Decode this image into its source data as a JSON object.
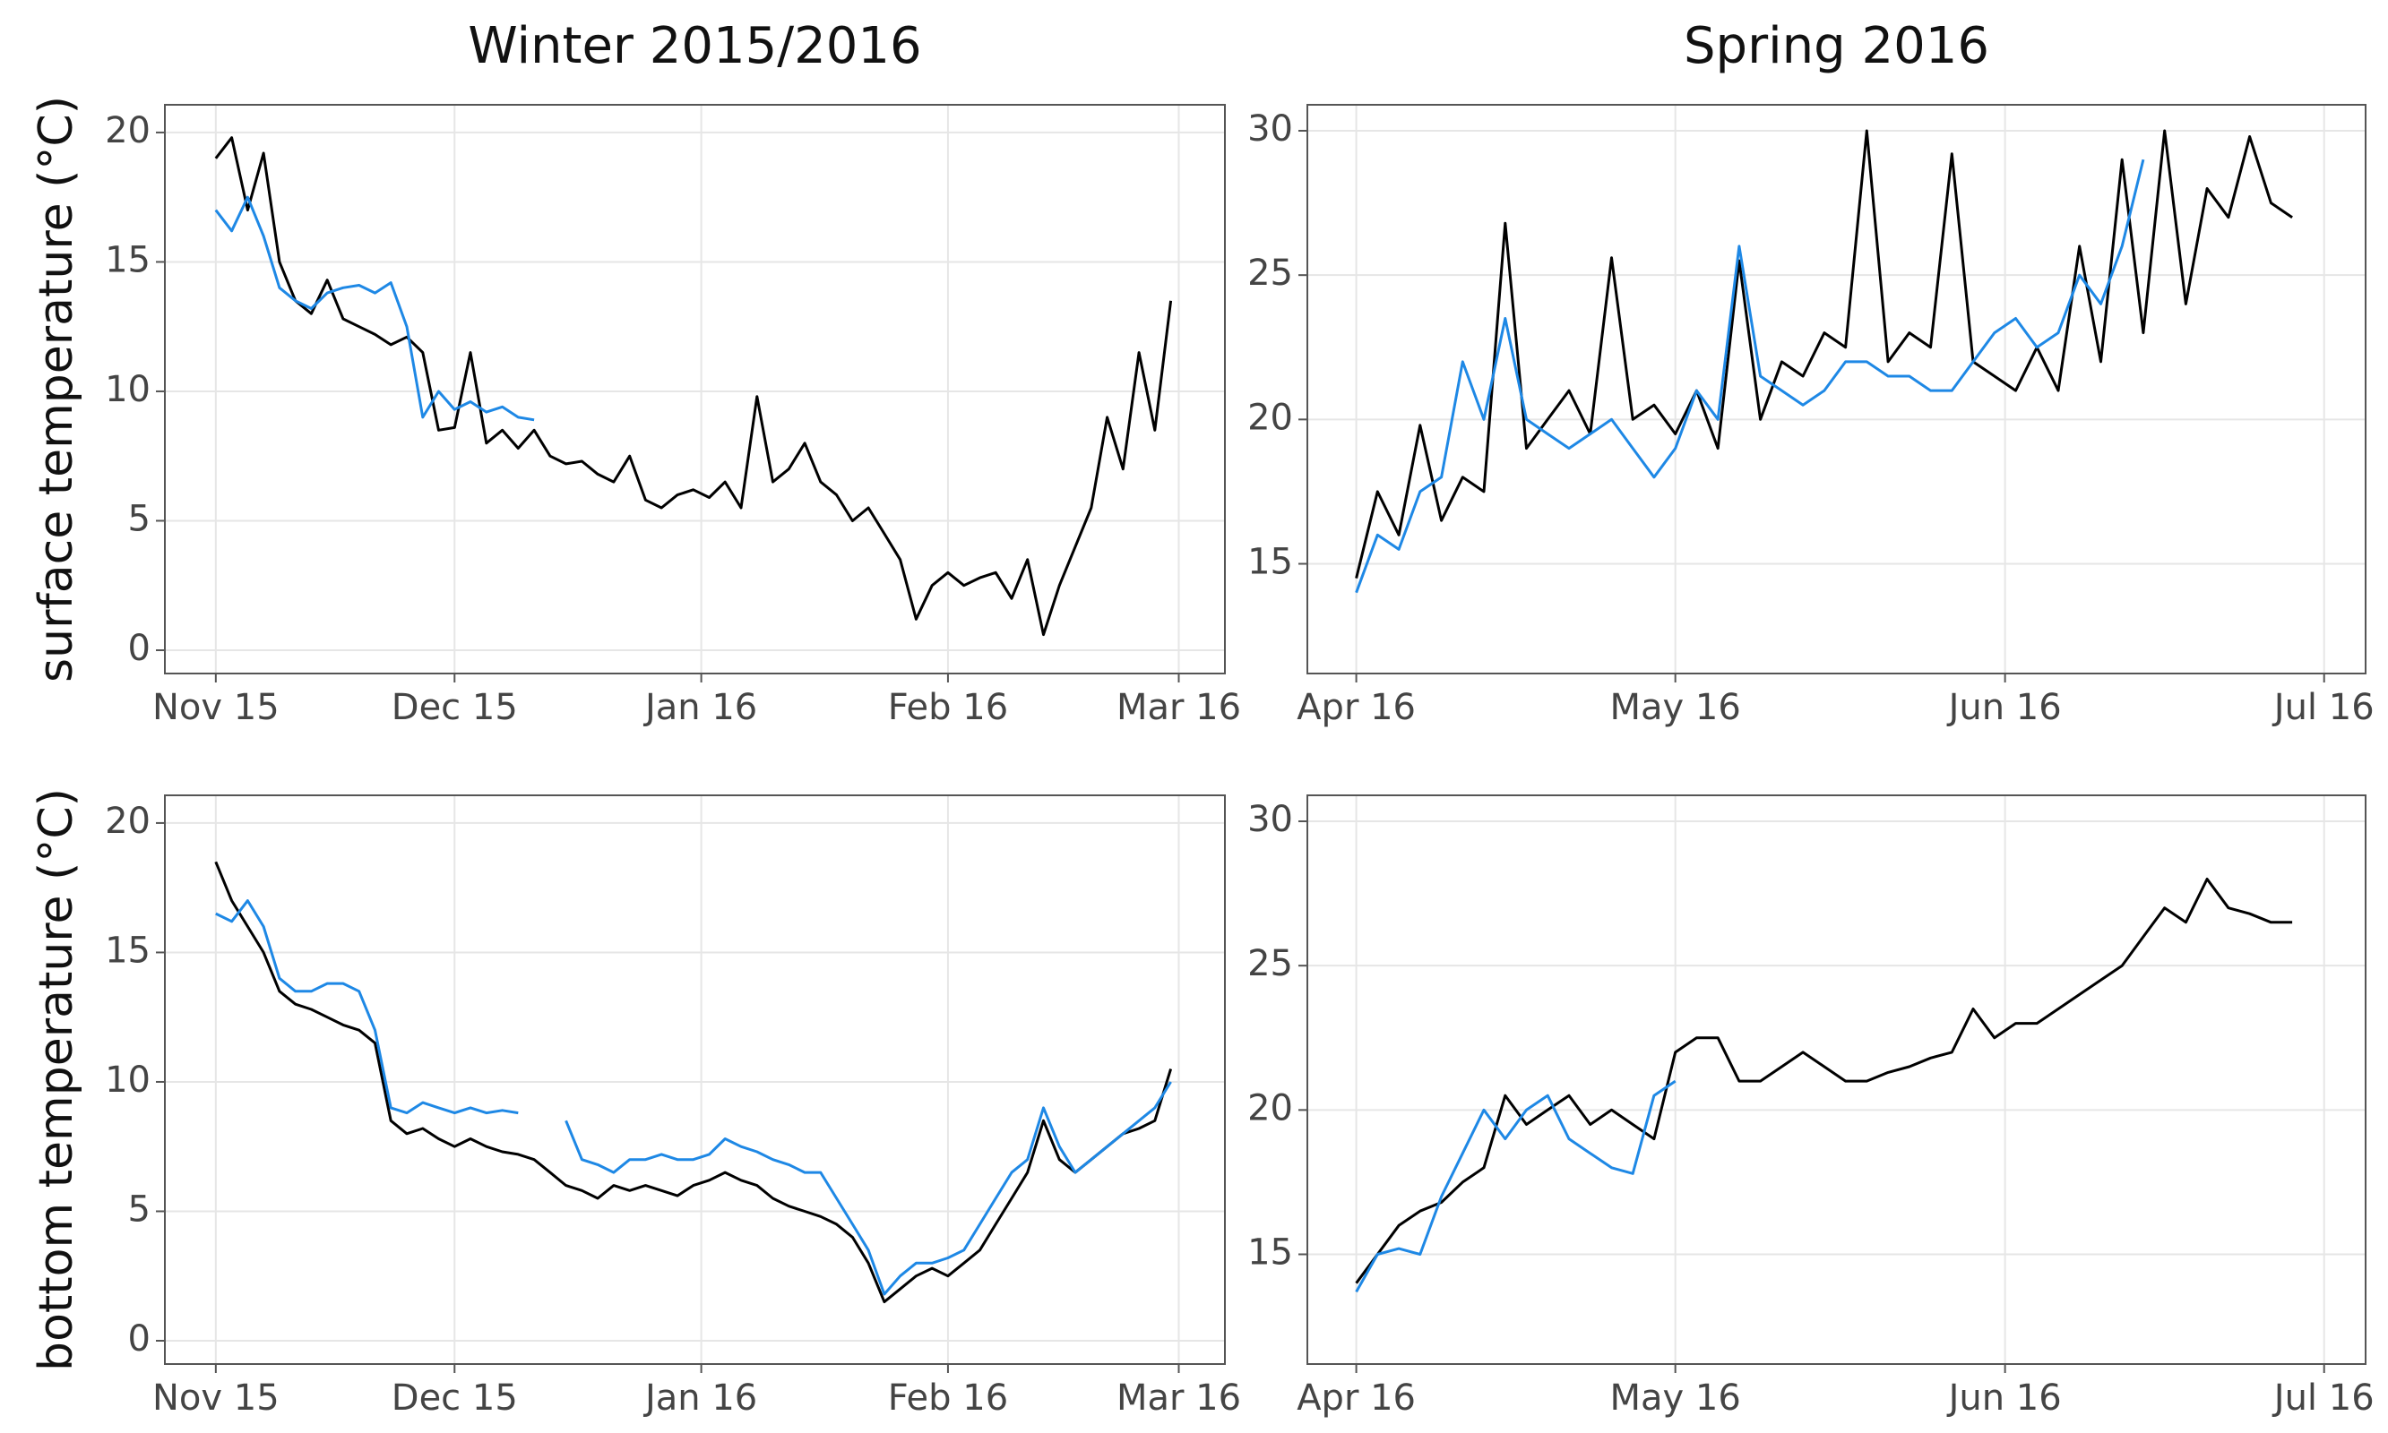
{
  "chart_data": [
    {
      "type": "line",
      "title": "Winter 2015/2016",
      "ylabel": "surface temperature (°C)",
      "x": [
        0,
        2,
        4,
        6,
        8,
        10,
        12,
        14,
        16,
        18,
        20,
        22,
        24,
        26,
        28,
        30,
        32,
        34,
        36,
        38,
        40,
        42,
        44,
        46,
        48,
        50,
        52,
        54,
        56,
        58,
        60,
        62,
        64,
        66,
        68,
        70,
        72,
        74,
        76,
        78,
        80,
        82,
        84,
        86,
        88,
        90,
        92,
        94,
        96,
        98,
        100,
        102,
        104,
        106,
        108,
        110,
        112,
        114,
        116,
        118,
        120
      ],
      "series": [
        {
          "color": "#000000",
          "values": [
            19,
            19.8,
            17,
            19.2,
            15,
            13.5,
            13,
            14.3,
            12.8,
            12.5,
            12.2,
            11.8,
            12.1,
            11.5,
            8.5,
            8.6,
            11.5,
            8,
            8.5,
            7.8,
            8.5,
            7.5,
            7.2,
            7.3,
            6.8,
            6.5,
            7.5,
            5.8,
            5.5,
            6,
            6.2,
            5.9,
            6.5,
            5.5,
            9.8,
            6.5,
            7,
            8,
            6.5,
            6,
            5,
            5.5,
            4.5,
            3.5,
            1.2,
            2.5,
            3,
            2.5,
            2.8,
            3,
            2,
            3.5,
            0.6,
            2.5,
            4,
            5.5,
            9,
            7,
            11.5,
            8.5,
            13.5
          ]
        },
        {
          "color": "#1e88e5",
          "values": [
            17,
            16.2,
            17.5,
            16,
            14,
            13.5,
            13.2,
            13.8,
            14,
            14.1,
            13.8,
            14.2,
            12.5,
            9,
            10,
            9.3,
            9.6,
            9.2,
            9.4,
            9,
            8.9,
            null,
            null,
            null,
            null,
            null,
            null,
            null,
            null,
            null,
            null,
            null,
            null,
            null,
            null,
            null,
            null,
            null,
            null,
            null,
            null,
            null,
            null,
            null,
            null,
            null,
            null,
            null,
            null,
            null,
            null,
            null,
            null,
            null,
            null,
            null,
            null,
            null,
            null,
            null,
            null
          ]
        }
      ],
      "xlim": [
        -6.4,
        126.8
      ],
      "xticks": [
        {
          "value": 0,
          "label": "Nov 15"
        },
        {
          "value": 30,
          "label": "Dec 15"
        },
        {
          "value": 61,
          "label": "Jan 16"
        },
        {
          "value": 92,
          "label": "Feb 16"
        },
        {
          "value": 121,
          "label": "Mar 16"
        }
      ],
      "ylim": [
        -0.9,
        21.07
      ],
      "yticks": [
        0,
        5,
        10,
        15,
        20
      ],
      "grid": true
    },
    {
      "type": "line",
      "title": "Spring 2016",
      "x": [
        0,
        2,
        4,
        6,
        8,
        10,
        12,
        14,
        16,
        18,
        20,
        22,
        24,
        26,
        28,
        30,
        32,
        34,
        36,
        38,
        40,
        42,
        44,
        46,
        48,
        50,
        52,
        54,
        56,
        58,
        60,
        62,
        64,
        66,
        68,
        70,
        72,
        74,
        76,
        78,
        80,
        82,
        84,
        86,
        88
      ],
      "series": [
        {
          "color": "#000000",
          "values": [
            14.5,
            17.5,
            16,
            19.8,
            16.5,
            18,
            17.5,
            26.8,
            19,
            20,
            21,
            19.5,
            25.6,
            20,
            20.5,
            19.5,
            21,
            19,
            25.5,
            20,
            22,
            21.5,
            23,
            22.5,
            30,
            22,
            23,
            22.5,
            29.2,
            22,
            21.5,
            21,
            22.5,
            21,
            26,
            22,
            29,
            23,
            30,
            24,
            28,
            27,
            29.8,
            27.5,
            27
          ]
        },
        {
          "color": "#1e88e5",
          "values": [
            14,
            16,
            15.5,
            17.5,
            18,
            22,
            20,
            23.5,
            20,
            19.5,
            19,
            19.5,
            20,
            19,
            18,
            19,
            21,
            20,
            26,
            21.5,
            21,
            20.5,
            21,
            22,
            22,
            21.5,
            21.5,
            21,
            21,
            22,
            23,
            23.5,
            22.5,
            23,
            25,
            24,
            26,
            29,
            null,
            null,
            null,
            null,
            null,
            null,
            null
          ]
        }
      ],
      "xlim": [
        -4.6,
        94.9
      ],
      "xticks": [
        {
          "value": 0,
          "label": "Apr 16"
        },
        {
          "value": 30,
          "label": "May 16"
        },
        {
          "value": 61,
          "label": "Jun 16"
        },
        {
          "value": 91,
          "label": "Jul 16"
        }
      ],
      "ylim": [
        11.2,
        30.9
      ],
      "yticks": [
        15,
        20,
        25,
        30
      ],
      "grid": true
    },
    {
      "type": "line",
      "ylabel": "bottom temperature (°C)",
      "x": [
        0,
        2,
        4,
        6,
        8,
        10,
        12,
        14,
        16,
        18,
        20,
        22,
        24,
        26,
        28,
        30,
        32,
        34,
        36,
        38,
        40,
        42,
        44,
        46,
        48,
        50,
        52,
        54,
        56,
        58,
        60,
        62,
        64,
        66,
        68,
        70,
        72,
        74,
        76,
        78,
        80,
        82,
        84,
        86,
        88,
        90,
        92,
        94,
        96,
        98,
        100,
        102,
        104,
        106,
        108,
        110,
        112,
        114,
        116,
        118,
        120
      ],
      "series": [
        {
          "color": "#000000",
          "values": [
            18.5,
            17,
            16,
            15,
            13.5,
            13,
            12.8,
            12.5,
            12.2,
            12,
            11.5,
            8.5,
            8,
            8.2,
            7.8,
            7.5,
            7.8,
            7.5,
            7.3,
            7.2,
            7,
            6.5,
            6,
            5.8,
            5.5,
            6,
            5.8,
            6,
            5.8,
            5.6,
            6,
            6.2,
            6.5,
            6.2,
            6,
            5.5,
            5.2,
            5,
            4.8,
            4.5,
            4,
            3,
            1.5,
            2,
            2.5,
            2.8,
            2.5,
            3,
            3.5,
            4.5,
            5.5,
            6.5,
            8.5,
            7,
            6.5,
            7,
            7.5,
            8,
            8.2,
            8.5,
            10.5
          ]
        },
        {
          "color": "#1e88e5",
          "values": [
            16.5,
            16.2,
            17,
            16,
            14,
            13.5,
            13.5,
            13.8,
            13.8,
            13.5,
            12,
            9,
            8.8,
            9.2,
            9,
            8.8,
            9,
            8.8,
            8.9,
            8.8,
            null,
            null,
            8.5,
            7,
            6.8,
            6.5,
            7,
            7,
            7.2,
            7,
            7,
            7.2,
            7.8,
            7.5,
            7.3,
            7,
            6.8,
            6.5,
            6.5,
            5.5,
            4.5,
            3.5,
            1.8,
            2.5,
            3,
            3,
            3.2,
            3.5,
            4.5,
            5.5,
            6.5,
            7,
            9,
            7.5,
            6.5,
            7,
            7.5,
            8,
            8.5,
            9,
            10
          ]
        }
      ],
      "xlim": [
        -6.4,
        126.8
      ],
      "xticks": [
        {
          "value": 0,
          "label": "Nov 15"
        },
        {
          "value": 30,
          "label": "Dec 15"
        },
        {
          "value": 61,
          "label": "Jan 16"
        },
        {
          "value": 92,
          "label": "Feb 16"
        },
        {
          "value": 121,
          "label": "Mar 16"
        }
      ],
      "ylim": [
        -0.9,
        21.07
      ],
      "yticks": [
        0,
        5,
        10,
        15,
        20
      ],
      "grid": true
    },
    {
      "type": "line",
      "x": [
        0,
        2,
        4,
        6,
        8,
        10,
        12,
        14,
        16,
        18,
        20,
        22,
        24,
        26,
        28,
        30,
        32,
        34,
        36,
        38,
        40,
        42,
        44,
        46,
        48,
        50,
        52,
        54,
        56,
        58,
        60,
        62,
        64,
        66,
        68,
        70,
        72,
        74,
        76,
        78,
        80,
        82,
        84,
        86,
        88
      ],
      "series": [
        {
          "color": "#000000",
          "values": [
            14,
            15,
            16,
            16.5,
            16.8,
            17.5,
            18,
            20.5,
            19.5,
            20,
            20.5,
            19.5,
            20,
            19.5,
            19,
            22,
            22.5,
            22.5,
            21,
            21,
            21.5,
            22,
            21.5,
            21,
            21,
            21.3,
            21.5,
            21.8,
            22,
            23.5,
            22.5,
            23,
            23,
            23.5,
            24,
            24.5,
            25,
            26,
            27,
            26.5,
            28,
            27,
            26.8,
            26.5,
            26.5
          ]
        },
        {
          "color": "#1e88e5",
          "values": [
            13.7,
            15,
            15.2,
            15,
            17,
            18.5,
            20,
            19,
            20,
            20.5,
            19,
            18.5,
            18,
            17.8,
            20.5,
            21,
            null,
            null,
            null,
            null,
            null,
            null,
            null,
            null,
            null,
            null,
            null,
            null,
            null,
            null,
            null,
            null,
            null,
            null,
            null,
            null,
            null,
            null,
            null,
            null,
            null,
            null,
            null,
            null,
            null
          ]
        }
      ],
      "xlim": [
        -4.6,
        94.9
      ],
      "xticks": [
        {
          "value": 0,
          "label": "Apr 16"
        },
        {
          "value": 30,
          "label": "May 16"
        },
        {
          "value": 61,
          "label": "Jun 16"
        },
        {
          "value": 91,
          "label": "Jul 16"
        }
      ],
      "ylim": [
        11.2,
        30.9
      ],
      "yticks": [
        15,
        20,
        25,
        30
      ],
      "grid": true
    }
  ]
}
